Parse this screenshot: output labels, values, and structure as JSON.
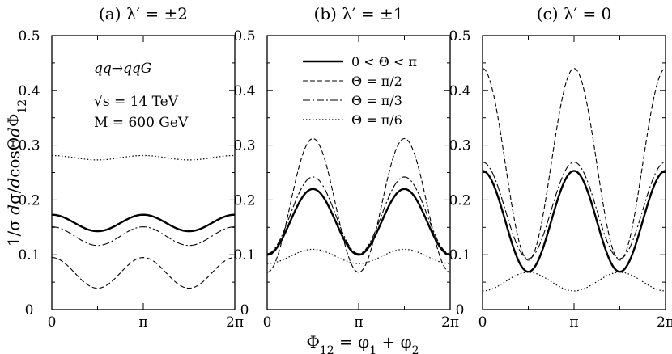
{
  "chart_data": [
    {
      "type": "line",
      "panel_title": "(a) λ′ = ±2",
      "xlim": [
        0,
        6.2832
      ],
      "ylim": [
        0,
        0.5
      ],
      "xtick_labels": [
        "0",
        "π",
        "2π"
      ],
      "ytick_labels": [
        "0",
        "0.1",
        "0.2",
        "0.3",
        "0.4",
        "0.5"
      ],
      "annotations": [
        "qq→qqG",
        "√s = 14 TeV",
        "M = 600 GeV"
      ],
      "series": [
        {
          "name": "0 < Θ < π",
          "style": "solid",
          "mean": 0.158,
          "amp": 0.015
        },
        {
          "name": "Θ = π/2",
          "style": "dashed",
          "mean": 0.067,
          "amp": 0.028
        },
        {
          "name": "Θ = π/3",
          "style": "dashdot",
          "mean": 0.134,
          "amp": 0.017
        },
        {
          "name": "Θ = π/6",
          "style": "dotted",
          "mean": 0.277,
          "amp": 0.004
        }
      ]
    },
    {
      "type": "line",
      "panel_title": "(b) λ′ = ±1",
      "xlim": [
        0,
        6.2832
      ],
      "ylim": [
        0,
        0.5
      ],
      "xtick_labels": [
        "0",
        "π",
        "2π"
      ],
      "ytick_labels": [
        "0",
        "0.1",
        "0.2",
        "0.3",
        "0.4",
        "0.5"
      ],
      "legend": [
        "0 < Θ < π",
        "Θ = π/2",
        "Θ = π/3",
        "Θ = π/6"
      ],
      "series": [
        {
          "name": "0 < Θ < π",
          "style": "solid",
          "mean": 0.16,
          "amp": -0.06
        },
        {
          "name": "Θ = π/2",
          "style": "dashed",
          "mean": 0.19,
          "amp": -0.122
        },
        {
          "name": "Θ = π/3",
          "style": "dashdot",
          "mean": 0.172,
          "amp": -0.07
        },
        {
          "name": "Θ = π/6",
          "style": "dotted",
          "mean": 0.097,
          "amp": -0.013
        }
      ]
    },
    {
      "type": "line",
      "panel_title": "(c) λ′ = 0",
      "xlim": [
        0,
        6.2832
      ],
      "ylim": [
        0,
        0.5
      ],
      "xtick_labels": [
        "0",
        "π",
        "2π"
      ],
      "ytick_labels": [
        "0",
        "0.1",
        "0.2",
        "0.3",
        "0.4",
        "0.5"
      ],
      "series": [
        {
          "name": "0 < Θ < π",
          "style": "solid",
          "mean": 0.161,
          "amp": 0.092
        },
        {
          "name": "Θ = π/2",
          "style": "dashed",
          "mean": 0.265,
          "amp": 0.175
        },
        {
          "name": "Θ = π/3",
          "style": "dashdot",
          "mean": 0.181,
          "amp": 0.088
        },
        {
          "name": "Θ = π/6",
          "style": "dotted",
          "mean": 0.051,
          "amp": -0.017
        }
      ]
    }
  ],
  "axes": {
    "ylabel": "1/σ dσ/dcosΘdΦ12",
    "xlabel": "Φ12 = φ1 + φ2"
  },
  "colors": {
    "ink": "#000000",
    "background": "#ffffff"
  }
}
